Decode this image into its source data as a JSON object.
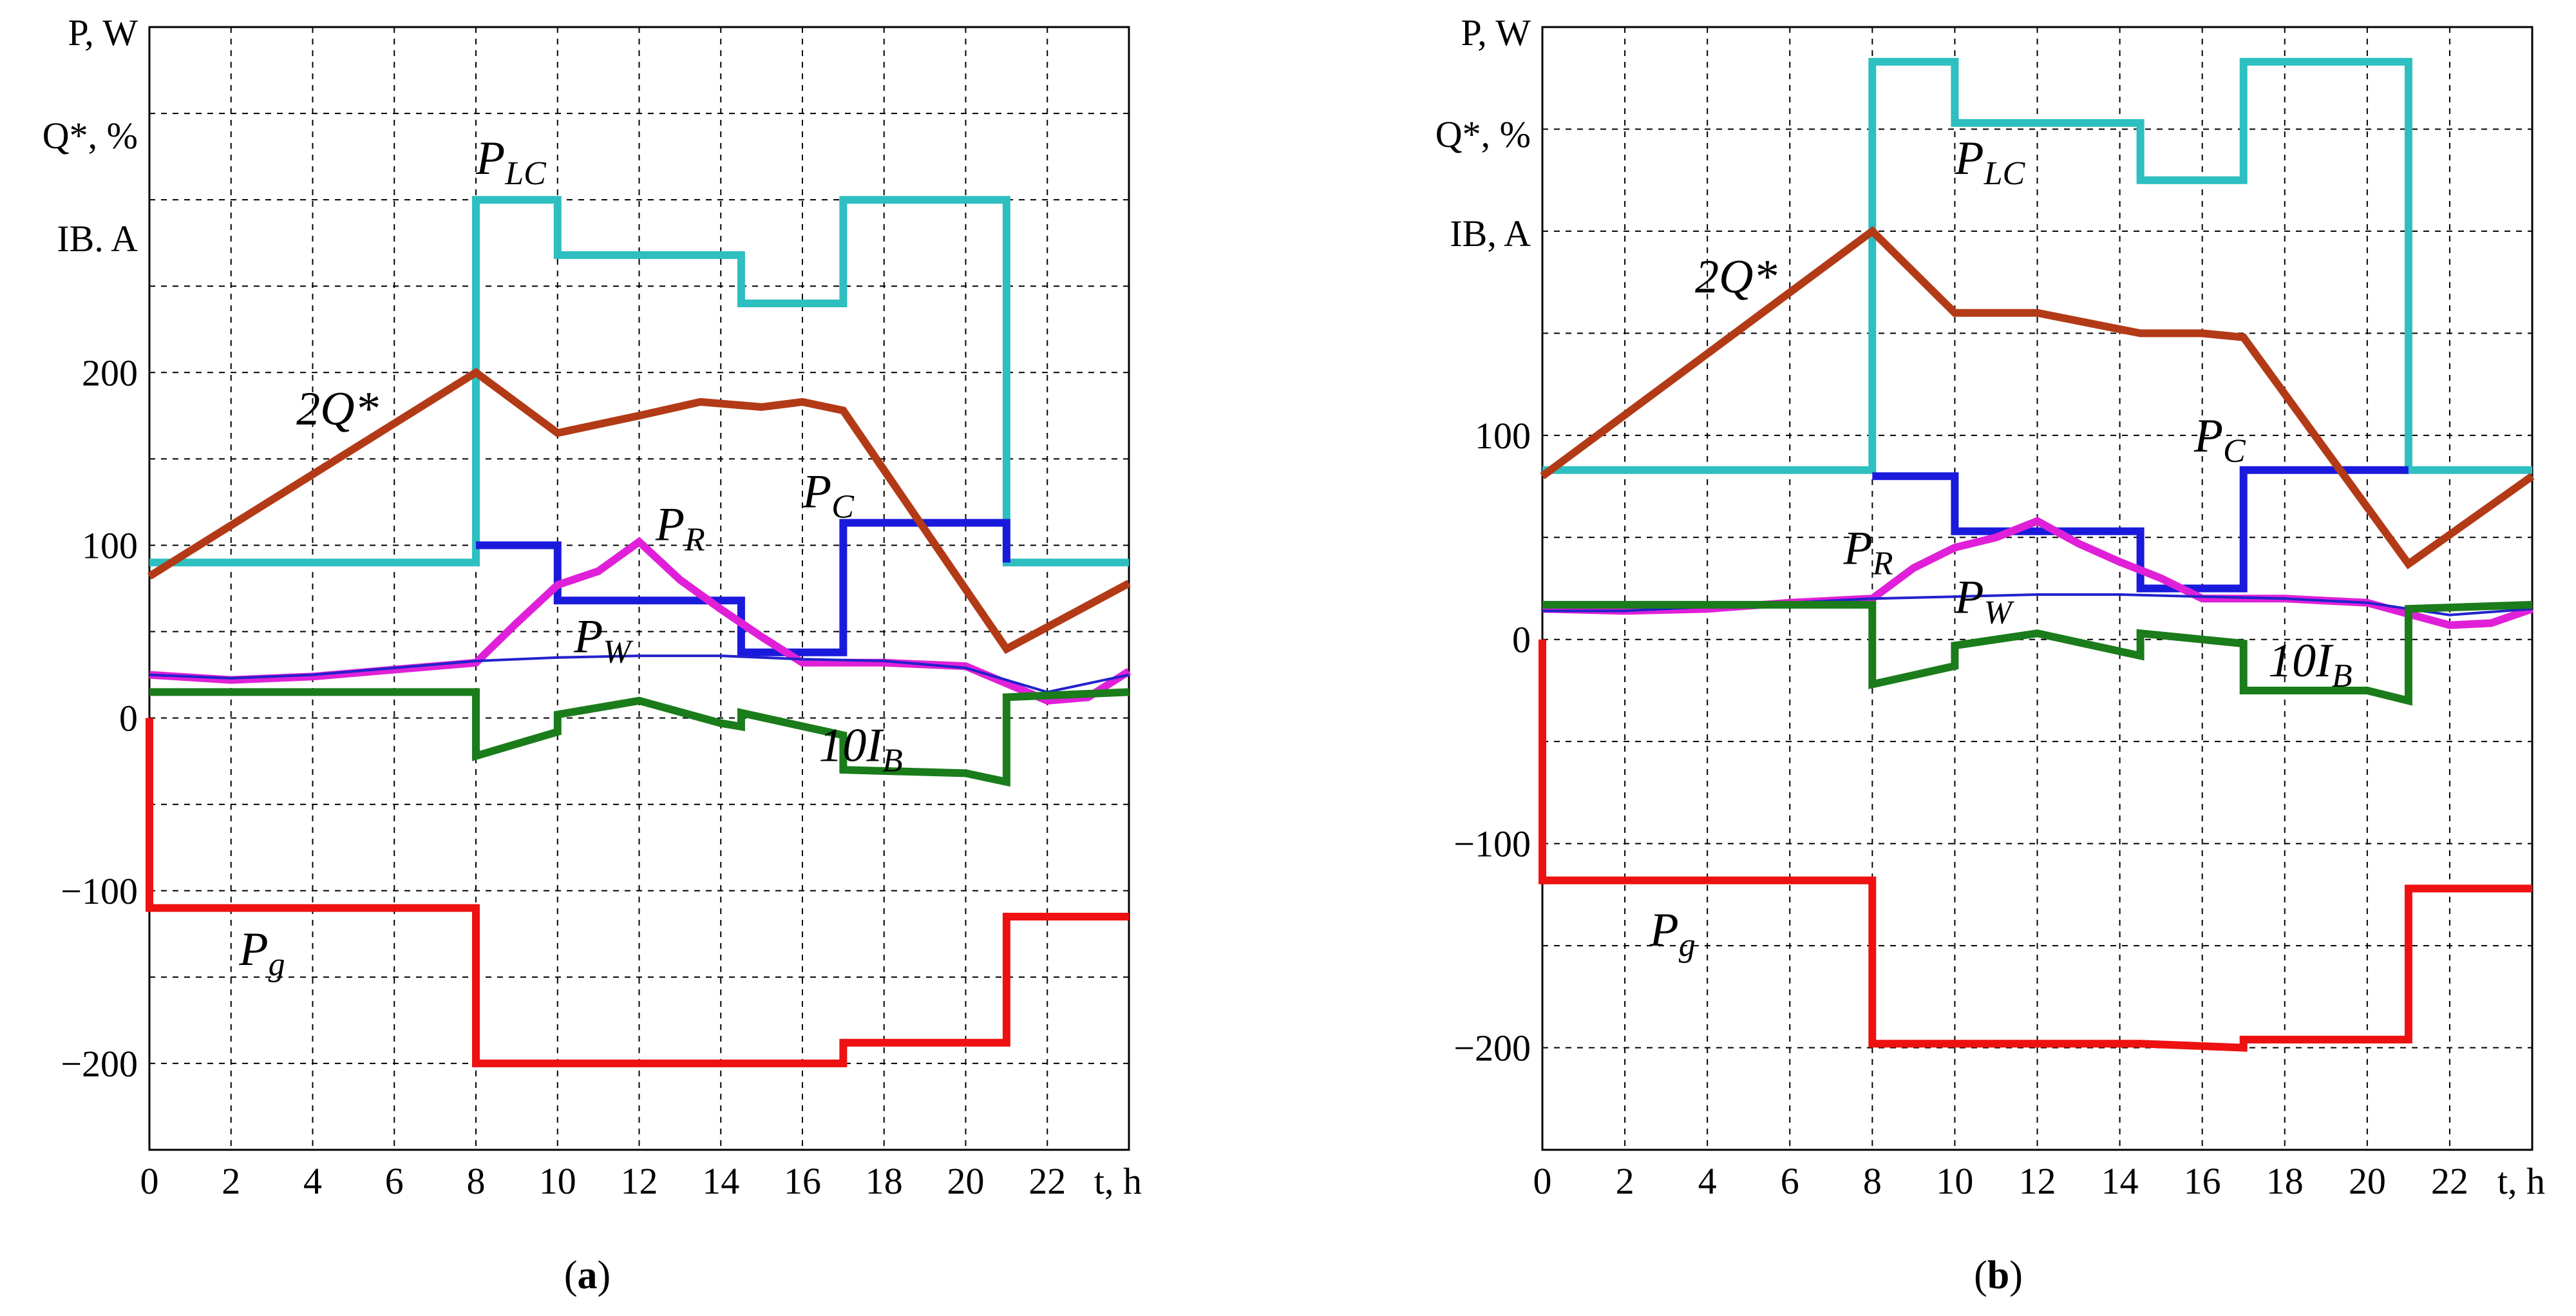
{
  "chart_data": [
    {
      "type": "line",
      "panel": "a",
      "caption_prefix": "(",
      "caption_letter": "a",
      "caption_suffix": ")",
      "ylabels": [
        "P, W",
        "Q*, %",
        "IB. A"
      ],
      "xlabel": "t, h",
      "xlim": [
        0,
        24
      ],
      "ylim": [
        -250,
        400
      ],
      "xticks": [
        0,
        2,
        4,
        6,
        8,
        10,
        12,
        14,
        16,
        18,
        20,
        22
      ],
      "yticks": [
        -200,
        -100,
        0,
        100,
        200
      ],
      "ytick_labels": [
        "−200",
        "−100",
        "0",
        "100",
        "200"
      ],
      "grid": true,
      "series": [
        {
          "name": "P_LC",
          "color": "#2ebfc0",
          "width": 3,
          "x": [
            0,
            8,
            8,
            10,
            10,
            14.5,
            14.5,
            17,
            17,
            21,
            21,
            24
          ],
          "y": [
            90,
            90,
            300,
            300,
            268,
            268,
            240,
            240,
            300,
            300,
            90,
            90
          ]
        },
        {
          "name": "P_C",
          "color": "#1a1adc",
          "width": 3,
          "x": [
            8,
            10,
            10,
            14.5,
            14.5,
            17,
            17,
            21,
            21
          ],
          "y": [
            100,
            100,
            68,
            68,
            38,
            38,
            113,
            113,
            90
          ]
        },
        {
          "name": "2Q*",
          "color": "#b33a16",
          "width": 3,
          "x": [
            0,
            8,
            10,
            12,
            13.5,
            15,
            16,
            17,
            21,
            24
          ],
          "y": [
            82,
            200,
            165,
            175,
            183,
            180,
            183,
            178,
            40,
            78
          ]
        },
        {
          "name": "P_R",
          "color": "#e020d8",
          "width": 3,
          "x": [
            0,
            2,
            4,
            6,
            8,
            9,
            10,
            11,
            12,
            13,
            14,
            15,
            16,
            18,
            20,
            22,
            23,
            24
          ],
          "y": [
            25,
            22,
            24,
            28,
            32,
            55,
            77,
            85,
            102,
            80,
            63,
            47,
            32,
            32,
            30,
            10,
            12,
            27
          ]
        },
        {
          "name": "P_W",
          "color": "#2222cc",
          "width": 1,
          "x": [
            0,
            2,
            4,
            6,
            8,
            10,
            12,
            14,
            16,
            18,
            20,
            22,
            24
          ],
          "y": [
            25,
            23,
            25,
            29,
            33,
            35,
            36,
            36,
            34,
            33,
            29,
            15,
            25
          ]
        },
        {
          "name": "10I_B",
          "color": "#1a7c1a",
          "width": 3,
          "x": [
            0,
            8,
            8,
            10,
            10,
            12,
            14,
            14.5,
            14.5,
            17,
            17,
            20,
            21,
            21,
            24
          ],
          "y": [
            15,
            15,
            -22,
            -8,
            2,
            10,
            -3,
            -5,
            3,
            -10,
            -30,
            -32,
            -37,
            12,
            15
          ]
        },
        {
          "name": "P_g",
          "color": "#ee1111",
          "width": 3,
          "x": [
            0,
            0,
            8,
            8,
            17,
            17,
            21,
            21,
            24
          ],
          "y": [
            0,
            -110,
            -110,
            -200,
            -200,
            -188,
            -188,
            -115,
            -115
          ]
        }
      ],
      "labels": [
        {
          "main": "P",
          "sub": "LC",
          "x": 8.0,
          "y": 315
        },
        {
          "main": "2Q*",
          "sub": "",
          "x": 3.6,
          "y": 170
        },
        {
          "main": "P",
          "sub": "R",
          "x": 12.4,
          "y": 103
        },
        {
          "main": "P",
          "sub": "C",
          "x": 16.0,
          "y": 122
        },
        {
          "main": "P",
          "sub": "W",
          "x": 10.4,
          "y": 38
        },
        {
          "main": "10I",
          "sub": "B",
          "x": 16.4,
          "y": -25
        },
        {
          "main": "P",
          "sub": "g",
          "x": 2.2,
          "y": -143
        }
      ]
    },
    {
      "type": "line",
      "panel": "b",
      "caption_prefix": "(",
      "caption_letter": "b",
      "caption_suffix": ")",
      "ylabels": [
        "P, W",
        "Q*, %",
        "IB, A"
      ],
      "xlabel": "t, h",
      "xlim": [
        0,
        24
      ],
      "ylim": [
        -250,
        300
      ],
      "xticks": [
        0,
        2,
        4,
        6,
        8,
        10,
        12,
        14,
        16,
        18,
        20,
        22
      ],
      "yticks": [
        -200,
        -100,
        0,
        100
      ],
      "ytick_labels": [
        "−200",
        "−100",
        "0",
        "100"
      ],
      "grid": true,
      "series": [
        {
          "name": "P_LC",
          "color": "#2ebfc0",
          "width": 3,
          "x": [
            0,
            8,
            8,
            10,
            10,
            14.5,
            14.5,
            17,
            17,
            21,
            21,
            24
          ],
          "y": [
            83,
            83,
            283,
            283,
            253,
            253,
            225,
            225,
            283,
            283,
            83,
            83
          ]
        },
        {
          "name": "P_C",
          "color": "#1a1adc",
          "width": 3,
          "x": [
            8,
            10,
            10,
            14.5,
            14.5,
            17,
            17,
            21
          ],
          "y": [
            80,
            80,
            53,
            53,
            25,
            25,
            83,
            83
          ]
        },
        {
          "name": "2Q*",
          "color": "#b33a16",
          "width": 3,
          "x": [
            0,
            8,
            10,
            12,
            14.5,
            16,
            17,
            21,
            24
          ],
          "y": [
            80,
            200,
            160,
            160,
            150,
            150,
            148,
            37,
            80
          ]
        },
        {
          "name": "P_R",
          "color": "#e020d8",
          "width": 3,
          "x": [
            0,
            2,
            4,
            6,
            8,
            9,
            10,
            11,
            12,
            13,
            14,
            15,
            16,
            18,
            20,
            22,
            23,
            24
          ],
          "y": [
            15,
            14,
            15,
            18,
            20,
            35,
            45,
            50,
            58,
            47,
            38,
            30,
            20,
            20,
            18,
            7,
            8,
            15
          ]
        },
        {
          "name": "P_W",
          "color": "#2222cc",
          "width": 1,
          "x": [
            0,
            2,
            4,
            6,
            8,
            10,
            12,
            14,
            16,
            18,
            20,
            22,
            24
          ],
          "y": [
            14,
            14,
            16,
            18,
            20,
            21,
            22,
            22,
            21,
            20,
            18,
            12,
            15
          ]
        },
        {
          "name": "10I_B",
          "color": "#1a7c1a",
          "width": 3,
          "x": [
            0,
            8,
            8,
            10,
            10,
            12,
            14.5,
            14.5,
            17,
            17,
            20,
            21,
            21,
            24
          ],
          "y": [
            17,
            17,
            -22,
            -13,
            -3,
            3,
            -8,
            3,
            -2,
            -25,
            -25,
            -30,
            15,
            17
          ]
        },
        {
          "name": "P_g",
          "color": "#ee1111",
          "width": 3,
          "x": [
            0,
            0,
            8,
            8,
            14.5,
            17,
            17,
            21,
            21,
            24
          ],
          "y": [
            0,
            -118,
            -118,
            -198,
            -198,
            -200,
            -196,
            -196,
            -122,
            -122
          ]
        }
      ],
      "labels": [
        {
          "main": "P",
          "sub": "LC",
          "x": 10.0,
          "y": 228
        },
        {
          "main": "2Q*",
          "sub": "",
          "x": 3.7,
          "y": 170
        },
        {
          "main": "P",
          "sub": "C",
          "x": 15.8,
          "y": 92
        },
        {
          "main": "P",
          "sub": "R",
          "x": 7.3,
          "y": 37
        },
        {
          "main": "P",
          "sub": "W",
          "x": 10.0,
          "y": 13
        },
        {
          "main": "10I",
          "sub": "B",
          "x": 17.6,
          "y": -18
        },
        {
          "main": "P",
          "sub": "g",
          "x": 2.6,
          "y": -150
        }
      ]
    }
  ]
}
